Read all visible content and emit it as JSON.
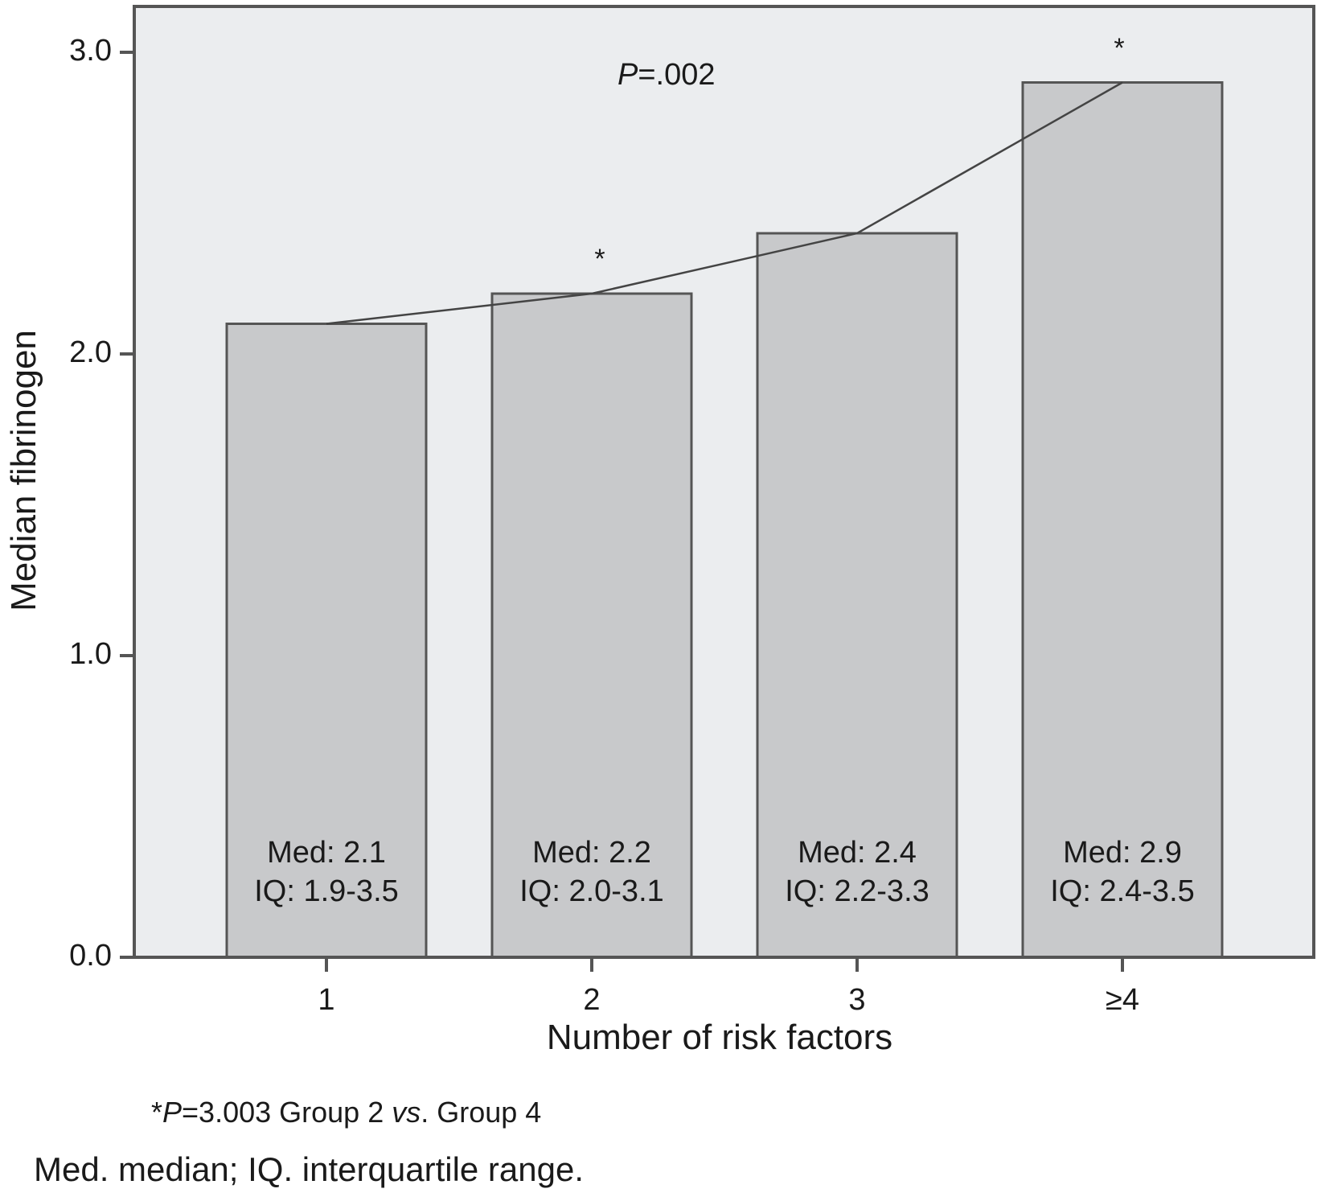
{
  "chart_data": {
    "type": "bar",
    "title": "",
    "xlabel": "Number of risk factors",
    "ylabel": "Median fibrinogen",
    "categories": [
      "1",
      "2",
      "3",
      "≥4"
    ],
    "values": [
      2.1,
      2.2,
      2.4,
      2.9
    ],
    "ylim": [
      0.0,
      3.0
    ],
    "yticks": [
      "0.0",
      "1.0",
      "2.0",
      "3.0"
    ],
    "grid": false,
    "legend": null,
    "trend_line": {
      "type": "line",
      "x": [
        "1",
        "2",
        "3",
        "≥4"
      ],
      "y": [
        2.1,
        2.2,
        2.4,
        2.9
      ]
    },
    "bar_annotations": [
      {
        "med": "Med: 2.1",
        "iq": "IQ: 1.9-3.5"
      },
      {
        "med": "Med: 2.2",
        "iq": "IQ: 2.0-3.1"
      },
      {
        "med": "Med: 2.4",
        "iq": "IQ: 2.2-3.3"
      },
      {
        "med": "Med: 2.9",
        "iq": "IQ: 2.4-3.5"
      }
    ],
    "significance_markers": [
      {
        "category": "2",
        "symbol": "*"
      },
      {
        "category": "≥4",
        "symbol": "*"
      }
    ],
    "annotations": {
      "overall_p_italic": "P",
      "overall_p_rest": "=.002"
    },
    "footnote": {
      "star": "*",
      "p_italic": "P",
      "p_rest": "=3.003 Group 2 ",
      "vs_italic": "vs",
      "tail": ". Group 4"
    },
    "caption": "Med. median; IQ. interquartile range."
  },
  "colors": {
    "plot_background": "#ebedef",
    "bar_fill": "#c8c9cb",
    "bar_stroke": "#555555",
    "axis": "#555555",
    "trend_line": "#444444",
    "text": "#1a1a1a"
  }
}
